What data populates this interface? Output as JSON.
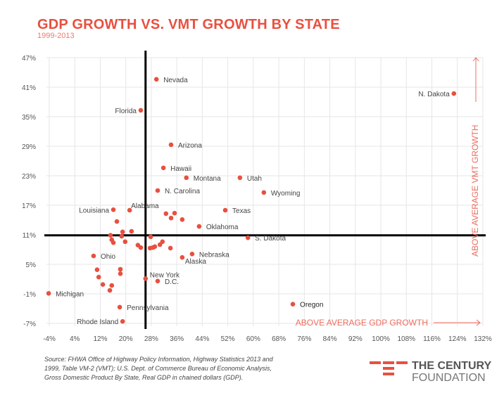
{
  "chart_data": {
    "type": "scatter",
    "title": "GDP GROWTH VS. VMT GROWTH BY STATE",
    "subtitle": "1999-2013",
    "xlabel": "ABOVE AVERAGE GDP GROWTH",
    "ylabel": "ABOVE AVERAGE VMT GROWTH",
    "xlim": [
      -4,
      132
    ],
    "ylim": [
      -7,
      47
    ],
    "x_ticks": [
      -4,
      4,
      12,
      20,
      28,
      36,
      44,
      52,
      60,
      68,
      76,
      84,
      92,
      100,
      108,
      116,
      124,
      132
    ],
    "y_ticks": [
      47,
      41,
      35,
      29,
      23,
      17,
      11,
      5,
      -1,
      -7
    ],
    "tick_suffix": "%",
    "average_lines": {
      "x": 26.2,
      "y": 10.9
    },
    "grid": true,
    "point_color": "#e8503f",
    "points": [
      {
        "label": "Nevada",
        "x": 29.6,
        "y": 42.6
      },
      {
        "label": "Florida",
        "x": 24.7,
        "y": 36.3
      },
      {
        "label": "Arizona",
        "x": 34.2,
        "y": 29.3
      },
      {
        "label": "Hawaii",
        "x": 31.8,
        "y": 24.6
      },
      {
        "label": "Montana",
        "x": 39.0,
        "y": 22.6
      },
      {
        "label": "Utah",
        "x": 55.8,
        "y": 22.6
      },
      {
        "label": "N. Carolina",
        "x": 30.0,
        "y": 20.0
      },
      {
        "label": "Wyoming",
        "x": 63.3,
        "y": 19.6
      },
      {
        "label": "Texas",
        "x": 51.2,
        "y": 16.0
      },
      {
        "label": "Louisiana",
        "x": 16.1,
        "y": 16.1
      },
      {
        "label": "Alabama",
        "x": 21.2,
        "y": 16.0
      },
      {
        "label": "Oklahoma",
        "x": 43.0,
        "y": 12.7
      },
      {
        "label": "S. Dakota",
        "x": 58.3,
        "y": 10.4
      },
      {
        "label": "N. Dakota",
        "x": 122.9,
        "y": 39.7
      },
      {
        "label": "Ohio",
        "x": 9.9,
        "y": 6.7
      },
      {
        "label": "Nebraska",
        "x": 40.8,
        "y": 7.1
      },
      {
        "label": "Alaska",
        "x": 37.7,
        "y": 6.4
      },
      {
        "label": "New York",
        "x": 26.2,
        "y": 2.1
      },
      {
        "label": "D.C.",
        "x": 30.0,
        "y": 1.6
      },
      {
        "label": "Michigan",
        "x": -4.2,
        "y": -0.9
      },
      {
        "label": "Pennsylvania",
        "x": 18.1,
        "y": -3.7
      },
      {
        "label": "Rhode Island",
        "x": 19.0,
        "y": -6.6
      },
      {
        "label": "Oregon",
        "x": 72.4,
        "y": -3.1
      },
      {
        "label": "",
        "x": 32.6,
        "y": 15.3
      },
      {
        "label": "",
        "x": 35.3,
        "y": 15.4
      },
      {
        "label": "",
        "x": 34.2,
        "y": 14.4
      },
      {
        "label": "",
        "x": 37.7,
        "y": 14.1
      },
      {
        "label": "",
        "x": 17.2,
        "y": 13.7
      },
      {
        "label": "",
        "x": 19.0,
        "y": 11.6
      },
      {
        "label": "",
        "x": 21.8,
        "y": 11.7
      },
      {
        "label": "",
        "x": 15.2,
        "y": 10.9
      },
      {
        "label": "",
        "x": 18.7,
        "y": 10.7
      },
      {
        "label": "",
        "x": 27.8,
        "y": 10.6
      },
      {
        "label": "",
        "x": 15.6,
        "y": 10.0
      },
      {
        "label": "",
        "x": 16.1,
        "y": 9.4
      },
      {
        "label": "",
        "x": 19.8,
        "y": 9.6
      },
      {
        "label": "",
        "x": 23.8,
        "y": 8.9
      },
      {
        "label": "",
        "x": 24.7,
        "y": 8.4
      },
      {
        "label": "",
        "x": 27.6,
        "y": 8.3
      },
      {
        "label": "",
        "x": 28.5,
        "y": 8.4
      },
      {
        "label": "",
        "x": 29.1,
        "y": 8.6
      },
      {
        "label": "",
        "x": 30.7,
        "y": 9.0
      },
      {
        "label": "",
        "x": 31.5,
        "y": 9.6
      },
      {
        "label": "",
        "x": 34.0,
        "y": 8.3
      },
      {
        "label": "",
        "x": 11.0,
        "y": 3.9
      },
      {
        "label": "",
        "x": 18.3,
        "y": 4.0
      },
      {
        "label": "",
        "x": 18.3,
        "y": 3.1
      },
      {
        "label": "",
        "x": 11.5,
        "y": 2.4
      },
      {
        "label": "",
        "x": 12.8,
        "y": 0.9
      },
      {
        "label": "",
        "x": 15.6,
        "y": 0.7
      },
      {
        "label": "",
        "x": 15.0,
        "y": -0.3
      }
    ]
  },
  "source": "Source: FHWA Office of Highway Policy Information, Highway Statistics 2013 and 1999, Table VM-2 (VMT); U.S. Dept. of Commerce Bureau of Economic Analysis, Gross Domestic Product By State, Real GDP in chained dollars (GDP).",
  "logo": {
    "line1": "THE CENTURY",
    "line2": "FOUNDATION"
  }
}
